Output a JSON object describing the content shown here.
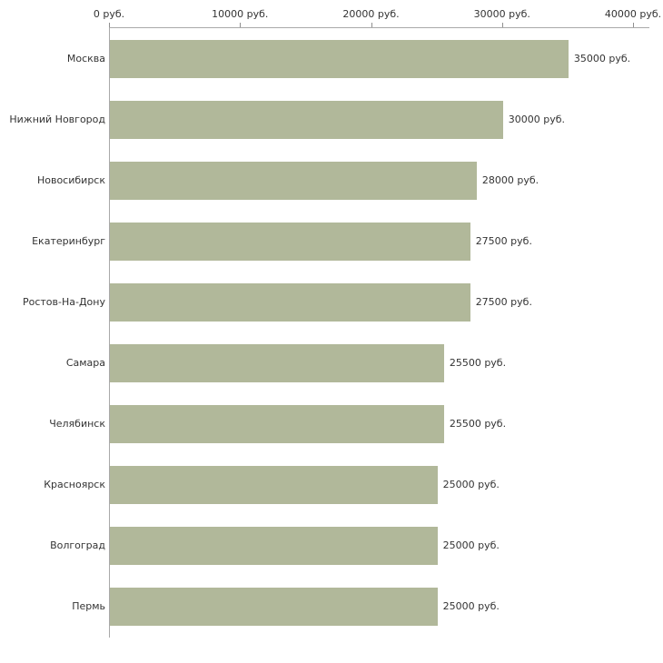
{
  "chart_data": {
    "type": "bar",
    "orientation": "horizontal",
    "title": "",
    "xlabel": "",
    "ylabel": "",
    "grid": false,
    "legend": false,
    "xlim": [
      0,
      40000
    ],
    "x_ticks": [
      0,
      10000,
      20000,
      30000,
      40000
    ],
    "x_tick_labels": [
      "0 руб.",
      "10000 руб.",
      "20000 руб.",
      "30000 руб.",
      "40000 руб."
    ],
    "categories": [
      "Москва",
      "Нижний Новгород",
      "Новосибирск",
      "Екатеринбург",
      "Ростов-На-Дону",
      "Самара",
      "Челябинск",
      "Красноярск",
      "Волгоград",
      "Пермь"
    ],
    "values": [
      35000,
      30000,
      28000,
      27500,
      27500,
      25500,
      25500,
      25000,
      25000,
      25000
    ],
    "value_labels": [
      "35000 руб.",
      "30000 руб.",
      "28000 руб.",
      "27500 руб.",
      "27500 руб.",
      "25500 руб.",
      "25500 руб.",
      "25000 руб.",
      "25000 руб.",
      "25000 руб."
    ],
    "bar_color": "#b1b89a",
    "axis_line_color": "#a9a9a9",
    "text_color": "#333333"
  }
}
